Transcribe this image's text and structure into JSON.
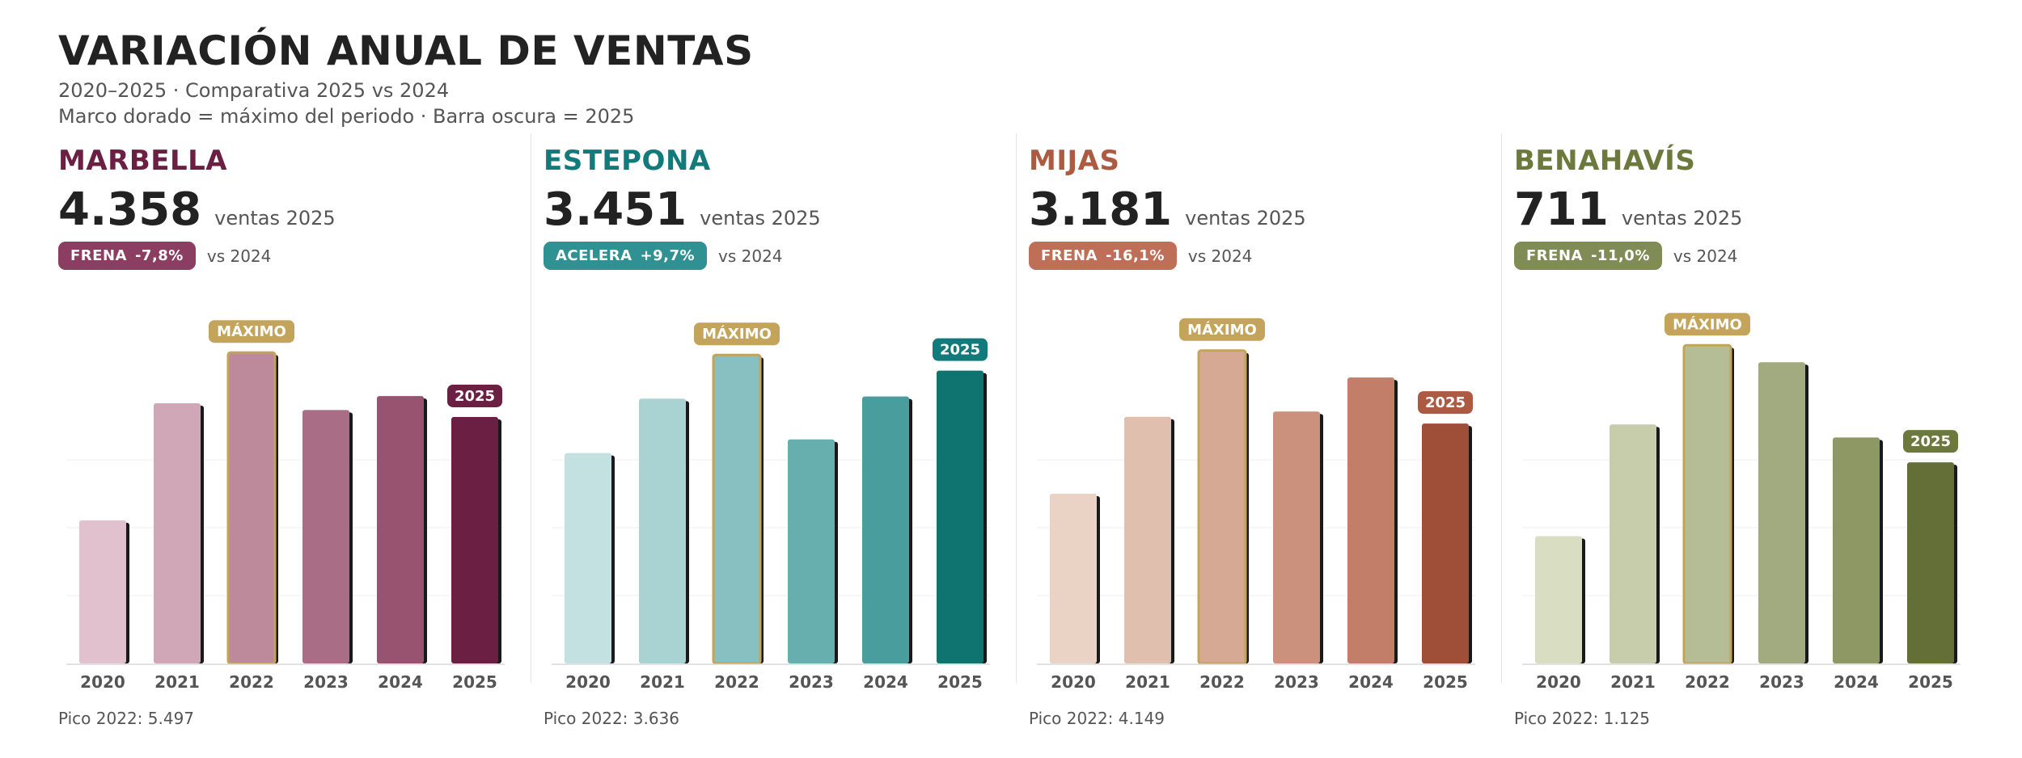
{
  "header": {
    "title": "VARIACIÓN ANUAL DE VENTAS",
    "subtitle1": "2020–2025 · Comparativa 2025 vs 2024",
    "subtitle2": "Marco dorado = máximo del periodo · Barra oscura = 2025"
  },
  "common": {
    "kpi_label": "ventas 2025",
    "vs_label": "vs 2024",
    "max_label": "MÁXIMO",
    "current_label": "2025",
    "gold": "#c4a45a"
  },
  "panels": [
    {
      "city": "MARBELLA",
      "accent": "#6b1f42",
      "kpi": "4.358",
      "badge_status": "FRENA",
      "badge_value": "-7,8%",
      "badge_color": "#8c3d62",
      "peak_note": "Pico 2022: 5.497",
      "bar_colors": [
        "#e1c1cd",
        "#cfa7b6",
        "#bd8a9c",
        "#a96d85",
        "#985370",
        "#6b1f42"
      ]
    },
    {
      "city": "ESTEPONA",
      "accent": "#137a7c",
      "kpi": "3.451",
      "badge_status": "ACELERA",
      "badge_value": "+9,7%",
      "badge_color": "#2f9191",
      "peak_note": "Pico 2022: 3.636",
      "bar_colors": [
        "#c4e1e1",
        "#a9d2d3",
        "#88bfc1",
        "#67aeae",
        "#499e9d",
        "#0f7370"
      ]
    },
    {
      "city": "MIJAS",
      "accent": "#ad5a42",
      "kpi": "3.181",
      "badge_status": "FRENA",
      "badge_value": "-16,1%",
      "badge_color": "#bf6e57",
      "peak_note": "Pico 2022: 4.149",
      "bar_colors": [
        "#ead2c5",
        "#e1bfaf",
        "#d6a994",
        "#cc917d",
        "#c27e69",
        "#9f4f38"
      ]
    },
    {
      "city": "BENAHAVÍS",
      "accent": "#6b7a3c",
      "kpi": "711",
      "badge_status": "FRENA",
      "badge_value": "-11,0%",
      "badge_color": "#7f8c56",
      "peak_note": "Pico 2022: 1.125",
      "bar_colors": [
        "#d9ddc2",
        "#c7cdab",
        "#b4bd96",
        "#a2ab7f",
        "#8e9864",
        "#646f38"
      ]
    }
  ],
  "chart_data": [
    {
      "type": "bar",
      "title": "MARBELLA",
      "categories": [
        "2020",
        "2021",
        "2022",
        "2023",
        "2024",
        "2025"
      ],
      "values": [
        2530,
        4600,
        5497,
        4480,
        4727,
        4358
      ],
      "ylim": [
        0,
        6000
      ],
      "max_index": 2,
      "current_index": 5
    },
    {
      "type": "bar",
      "title": "ESTEPONA",
      "categories": [
        "2020",
        "2021",
        "2022",
        "2023",
        "2024",
        "2025"
      ],
      "values": [
        2480,
        3120,
        3636,
        2640,
        3146,
        3451
      ],
      "ylim": [
        0,
        4000
      ],
      "max_index": 2,
      "current_index": 5
    },
    {
      "type": "bar",
      "title": "MIJAS",
      "categories": [
        "2020",
        "2021",
        "2022",
        "2023",
        "2024",
        "2025"
      ],
      "values": [
        2250,
        3270,
        4149,
        3340,
        3791,
        3181
      ],
      "ylim": [
        0,
        4500
      ],
      "max_index": 2,
      "current_index": 5
    },
    {
      "type": "bar",
      "title": "BENAHAVÍS",
      "categories": [
        "2020",
        "2021",
        "2022",
        "2023",
        "2024",
        "2025"
      ],
      "values": [
        450,
        845,
        1125,
        1065,
        799,
        711
      ],
      "ylim": [
        0,
        1200
      ],
      "max_index": 2,
      "current_index": 5
    }
  ]
}
